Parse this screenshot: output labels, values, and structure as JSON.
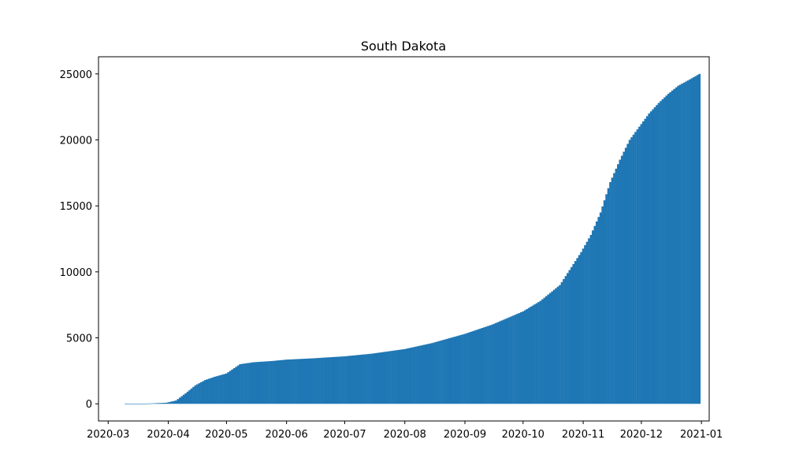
{
  "chart_data": {
    "type": "bar",
    "title": "South Dakota",
    "xlabel": "",
    "ylabel": "",
    "x_range": [
      "2020-02-25",
      "2021-01-05"
    ],
    "ylim": [
      -1300,
      26300
    ],
    "x_ticks": [
      "2020-03",
      "2020-04",
      "2020-05",
      "2020-06",
      "2020-07",
      "2020-08",
      "2020-09",
      "2020-10",
      "2020-11",
      "2020-12",
      "2021-01"
    ],
    "y_ticks": [
      0,
      5000,
      10000,
      15000,
      20000,
      25000
    ],
    "grid": false,
    "color": "#1f77b4",
    "series": [
      {
        "dates": [
          "2020-03-10",
          "2020-03-20",
          "2020-03-31",
          "2020-04-05",
          "2020-04-10",
          "2020-04-15",
          "2020-04-20",
          "2020-04-25",
          "2020-05-01",
          "2020-05-06",
          "2020-05-08",
          "2020-05-15",
          "2020-05-25",
          "2020-06-01",
          "2020-06-15",
          "2020-07-01",
          "2020-07-15",
          "2020-08-01",
          "2020-08-15",
          "2020-09-01",
          "2020-09-15",
          "2020-10-01",
          "2020-10-10",
          "2020-10-20",
          "2020-10-31",
          "2020-11-05",
          "2020-11-10",
          "2020-11-15",
          "2020-11-20",
          "2020-11-25",
          "2020-12-01",
          "2020-12-05",
          "2020-12-10",
          "2020-12-15",
          "2020-12-20",
          "2020-12-25",
          "2020-12-31"
        ],
        "values": [
          0,
          10,
          80,
          250,
          800,
          1400,
          1800,
          2050,
          2300,
          2800,
          3000,
          3150,
          3250,
          3350,
          3450,
          3600,
          3800,
          4150,
          4600,
          5300,
          6000,
          7000,
          7800,
          9000,
          11500,
          12800,
          14500,
          16800,
          18500,
          20000,
          21200,
          22000,
          22800,
          23500,
          24100,
          24500,
          25000
        ]
      }
    ]
  }
}
